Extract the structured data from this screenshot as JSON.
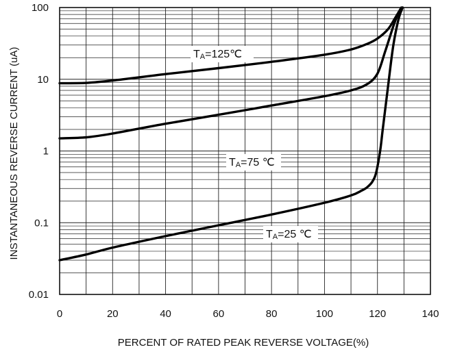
{
  "chart_data": {
    "type": "line",
    "title": "",
    "xlabel": "PERCENT OF RATED PEAK REVERSE VOLTAGE(%)",
    "ylabel": "INSTANTANEOUS REVERSE CURRENT (uA)",
    "xlim": [
      0,
      140
    ],
    "ylim": [
      0.01,
      100
    ],
    "y_scale": "log",
    "grid": true,
    "x_ticks": [
      "0",
      "20",
      "40",
      "60",
      "80",
      "100",
      "120",
      "140"
    ],
    "y_ticks": [
      "0.01",
      "0.1",
      "1",
      "10",
      "100"
    ],
    "series": [
      {
        "name": "TA=125℃",
        "label_main": "T",
        "label_sub": "A",
        "label_rest": "=125℃",
        "x": [
          0,
          10,
          20,
          40,
          60,
          80,
          100,
          110,
          116,
          120,
          124,
          127,
          129
        ],
        "y": [
          8.8,
          8.9,
          9.6,
          11.8,
          14.3,
          17.5,
          22,
          26,
          31,
          37,
          50,
          75,
          100
        ]
      },
      {
        "name": "TA=75℃",
        "label_main": "T",
        "label_sub": "A",
        "label_rest": "=75 ℃",
        "x": [
          0,
          10,
          20,
          40,
          60,
          80,
          100,
          110,
          116,
          120,
          123,
          126,
          128,
          129.5
        ],
        "y": [
          1.5,
          1.55,
          1.75,
          2.4,
          3.2,
          4.3,
          5.8,
          7,
          8.5,
          12,
          25,
          55,
          85,
          100
        ]
      },
      {
        "name": "TA=25℃",
        "label_main": "T",
        "label_sub": "A",
        "label_rest": "=25 ℃",
        "x": [
          0,
          10,
          20,
          40,
          60,
          80,
          100,
          110,
          114,
          116,
          118,
          119.5,
          121,
          122,
          124,
          126,
          128,
          129.5
        ],
        "y": [
          0.03,
          0.036,
          0.045,
          0.065,
          0.092,
          0.13,
          0.19,
          0.24,
          0.28,
          0.31,
          0.37,
          0.5,
          1.0,
          2.0,
          8,
          30,
          70,
          100
        ]
      }
    ]
  }
}
